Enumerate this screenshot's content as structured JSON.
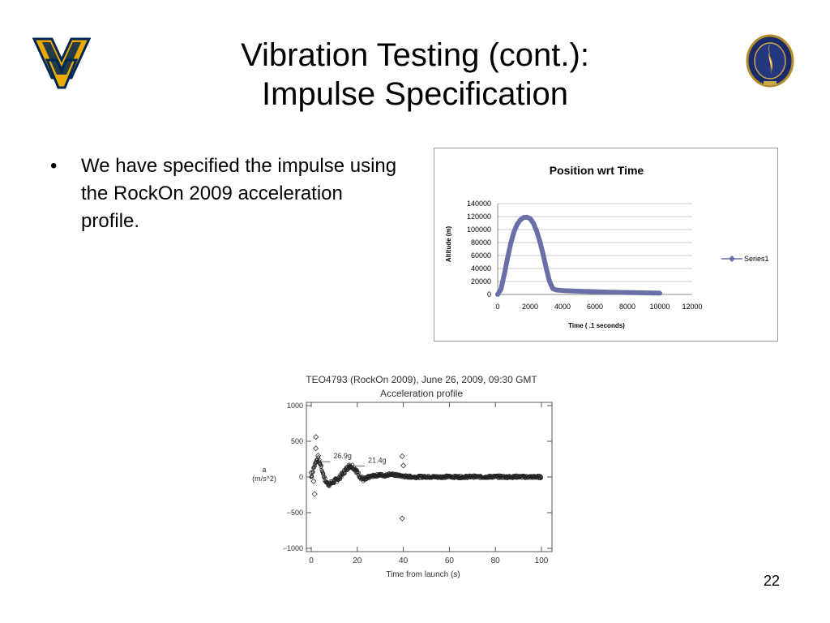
{
  "slide": {
    "title_line1": "Vibration Testing (cont.):",
    "title_line2": "Impulse Specification",
    "bullet_symbol": "•",
    "bullet_text": "We have specified the impulse using the RockOn 2009 acceleration profile.",
    "page_number": "22"
  },
  "logos": {
    "left": {
      "icon": "wv-logo",
      "colors": {
        "gold": "#EAAA00",
        "navy": "#002855"
      }
    },
    "right": {
      "icon": "nasa-space-grant-seal"
    }
  },
  "chart_data": [
    {
      "type": "line",
      "title": "Position wrt Time",
      "xlabel": "Time ( .1 seconds)",
      "ylabel": "Altitude (m)",
      "xlim": [
        0,
        12000
      ],
      "ylim": [
        0,
        140000
      ],
      "xticks": [
        0,
        2000,
        4000,
        6000,
        8000,
        10000,
        12000
      ],
      "yticks": [
        0,
        20000,
        40000,
        60000,
        80000,
        100000,
        120000,
        140000
      ],
      "grid": "horizontal",
      "legend": "right",
      "color": "#6a6fa8",
      "series": [
        {
          "name": "Series1",
          "x": [
            0,
            200,
            400,
            600,
            800,
            1000,
            1200,
            1400,
            1600,
            1800,
            2000,
            2200,
            2400,
            2600,
            2800,
            3000,
            3200,
            3400,
            3600,
            3800,
            4000,
            5000,
            6000,
            7000,
            8000,
            9000,
            10000
          ],
          "y": [
            0,
            8000,
            30000,
            55000,
            78000,
            96000,
            108000,
            115000,
            118500,
            119000,
            117000,
            110000,
            98000,
            82000,
            62000,
            40000,
            20000,
            9000,
            7000,
            6500,
            6000,
            5000,
            4200,
            3500,
            3000,
            2500,
            2000
          ]
        }
      ]
    },
    {
      "type": "scatter",
      "title": "TEO4793 (RockOn 2009), June 26, 2009, 09:30 GMT",
      "subtitle": "Acceleration profile",
      "xlabel": "Time from launch (s)",
      "ylabel": "a",
      "ylabel_unit": "(m/s^2)",
      "xlim": [
        0,
        100
      ],
      "ylim": [
        -1000,
        1000
      ],
      "xticks": [
        0,
        20,
        40,
        60,
        80,
        100
      ],
      "ytick_labels": [
        "1000",
        "500",
        "0",
        "−500",
        "−1000"
      ],
      "yticks": [
        1000,
        500,
        0,
        -500,
        -1000
      ],
      "annotations": [
        {
          "text": "26.9g",
          "x": 4,
          "y": 260
        },
        {
          "text": "21.4g",
          "x": 19,
          "y": 200
        }
      ],
      "outliers": [
        {
          "x": 2,
          "y": 560
        },
        {
          "x": 2,
          "y": 400
        },
        {
          "x": 1.5,
          "y": -240
        },
        {
          "x": 39.5,
          "y": 290
        },
        {
          "x": 40,
          "y": 160
        },
        {
          "x": 39.5,
          "y": -580
        },
        {
          "x": 0,
          "y": 60
        },
        {
          "x": 1,
          "y": -60
        },
        {
          "x": 3,
          "y": 300
        }
      ],
      "envelope": [
        [
          0,
          0
        ],
        [
          1,
          120
        ],
        [
          2,
          220
        ],
        [
          3,
          250
        ],
        [
          4,
          180
        ],
        [
          5,
          60
        ],
        [
          6,
          -40
        ],
        [
          7,
          -90
        ],
        [
          8,
          -100
        ],
        [
          9,
          -80
        ],
        [
          10,
          -60
        ],
        [
          11,
          -40
        ],
        [
          12,
          -20
        ],
        [
          13,
          20
        ],
        [
          14,
          60
        ],
        [
          15,
          100
        ],
        [
          16,
          140
        ],
        [
          17,
          160
        ],
        [
          18,
          150
        ],
        [
          19,
          110
        ],
        [
          20,
          60
        ],
        [
          21,
          20
        ],
        [
          22,
          -20
        ],
        [
          23,
          -40
        ],
        [
          24,
          -30
        ],
        [
          25,
          -10
        ],
        [
          26,
          10
        ],
        [
          28,
          20
        ],
        [
          30,
          30
        ],
        [
          32,
          20
        ],
        [
          34,
          40
        ],
        [
          36,
          30
        ],
        [
          38,
          20
        ],
        [
          40,
          10
        ],
        [
          42,
          5
        ],
        [
          45,
          0
        ],
        [
          50,
          5
        ],
        [
          55,
          0
        ],
        [
          60,
          5
        ],
        [
          65,
          0
        ],
        [
          70,
          5
        ],
        [
          75,
          0
        ],
        [
          80,
          5
        ],
        [
          85,
          0
        ],
        [
          90,
          5
        ],
        [
          95,
          0
        ],
        [
          100,
          0
        ]
      ]
    }
  ]
}
